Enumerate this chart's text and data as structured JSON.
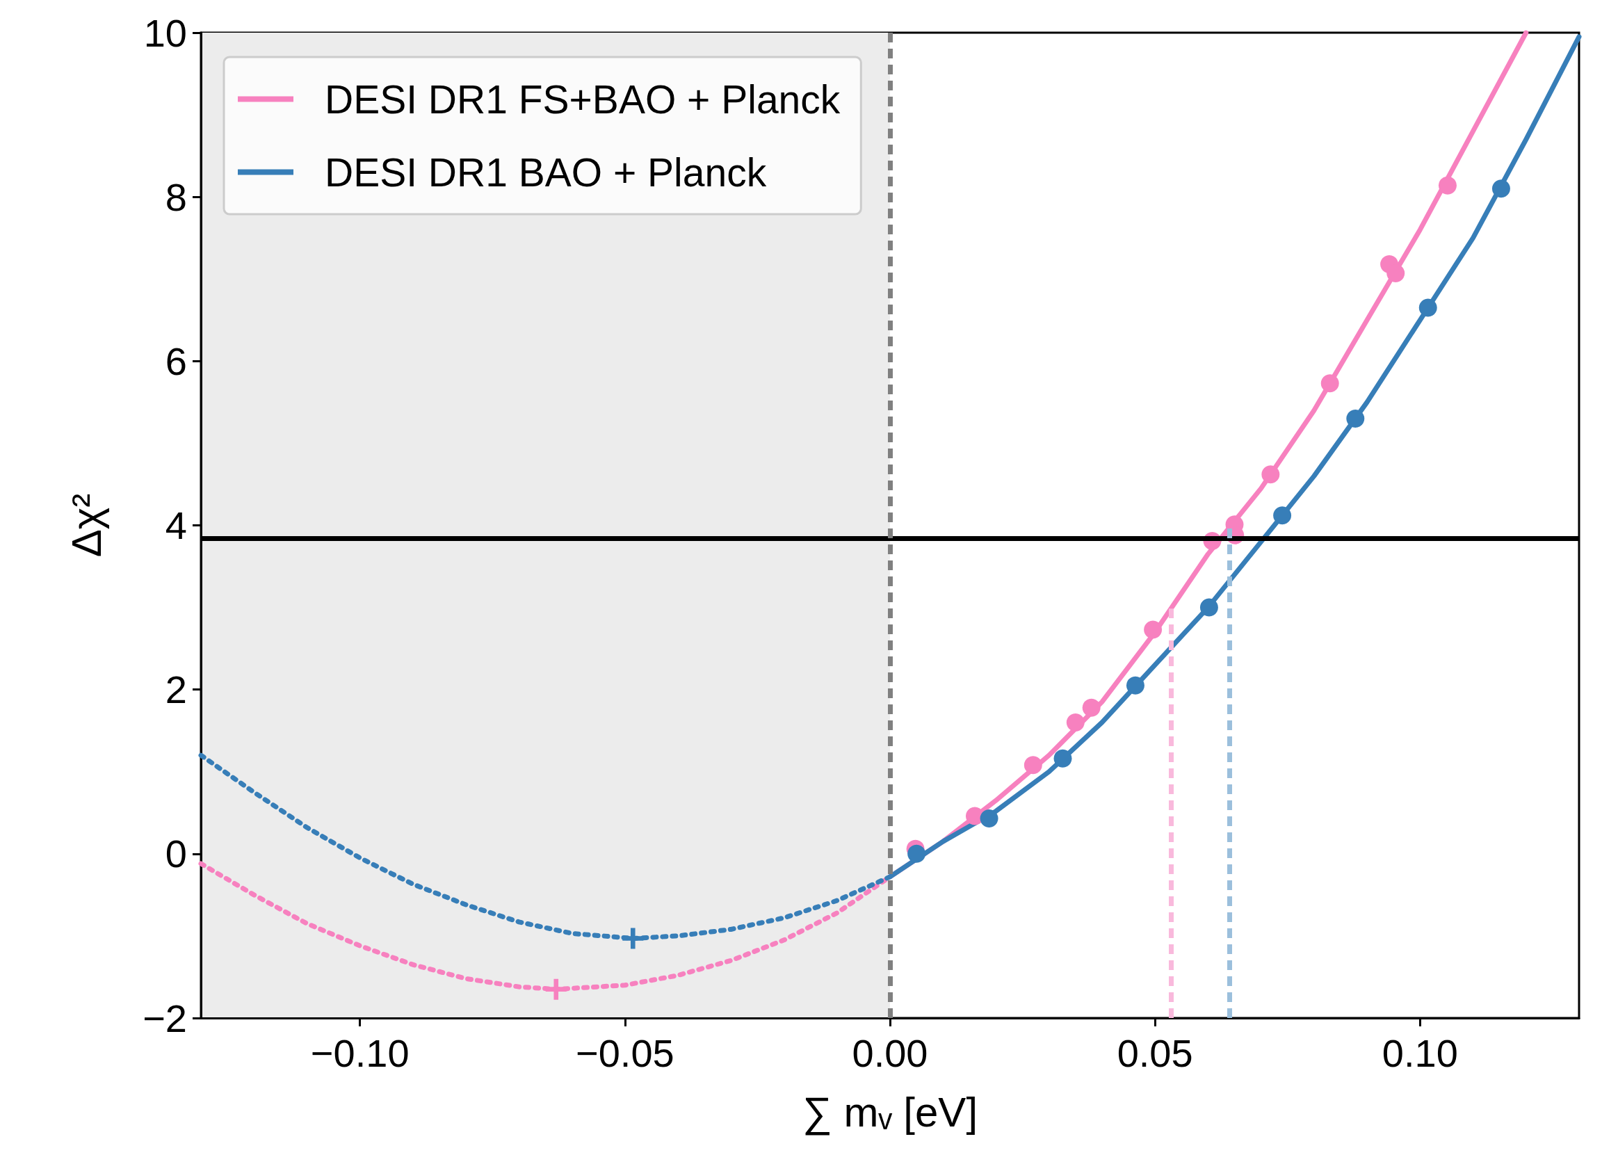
{
  "chart_data": {
    "type": "line",
    "xlabel": "∑ mᵥ [eV]",
    "ylabel": "Δχ²",
    "xlim": [
      -0.13,
      0.13
    ],
    "xticks": [
      {
        "value": -0.1,
        "label": "−0.10"
      },
      {
        "value": -0.05,
        "label": "−0.05"
      },
      {
        "value": 0,
        "label": "0.00"
      },
      {
        "value": 0.05,
        "label": "0.05"
      },
      {
        "value": 0.1,
        "label": "0.10"
      }
    ],
    "ylim": [
      -2,
      10
    ],
    "yticks": [
      {
        "value": -2,
        "label": "−2"
      },
      0,
      2,
      4,
      6,
      8,
      10
    ],
    "grid": false,
    "legend": "top left",
    "series": [
      {
        "name": "DESI DR1 FS+BAO + Planck",
        "color": "#f781bf",
        "line_style": "solid",
        "marker": "none",
        "x": [
          0,
          0.01,
          0.02,
          0.03,
          0.04,
          0.05,
          0.06,
          0.07,
          0.08,
          0.09,
          0.1,
          0.11,
          0.12
        ],
        "values": [
          -0.28,
          0.15,
          0.65,
          1.2,
          1.85,
          2.7,
          3.65,
          4.45,
          5.4,
          6.5,
          7.6,
          8.8,
          10
        ]
      },
      {
        "name": "DESI DR1 BAO + Planck",
        "color": "#377eb8",
        "line_style": "solid",
        "marker": "none",
        "x": [
          0,
          0.01,
          0.02,
          0.03,
          0.04,
          0.05,
          0.06,
          0.07,
          0.08,
          0.09,
          0.1,
          0.11,
          0.12,
          0.13
        ],
        "values": [
          -0.28,
          0.15,
          0.52,
          1.0,
          1.6,
          2.3,
          3.0,
          3.8,
          4.6,
          5.5,
          6.5,
          7.5,
          8.7,
          9.95
        ]
      },
      {
        "color": "#f781bf",
        "line_style": "dotted",
        "marker": "none",
        "x": [
          -0.13,
          -0.12,
          -0.11,
          -0.1,
          -0.09,
          -0.08,
          -0.07,
          -0.063,
          -0.05,
          -0.04,
          -0.03,
          -0.02,
          -0.01,
          0
        ],
        "values": [
          -0.12,
          -0.5,
          -0.85,
          -1.12,
          -1.35,
          -1.52,
          -1.62,
          -1.65,
          -1.6,
          -1.48,
          -1.3,
          -1.05,
          -0.72,
          -0.28
        ]
      },
      {
        "color": "#377eb8",
        "line_style": "dotted",
        "marker": "none",
        "x": [
          -0.13,
          -0.12,
          -0.11,
          -0.1,
          -0.09,
          -0.08,
          -0.07,
          -0.06,
          -0.0485,
          -0.04,
          -0.03,
          -0.02,
          -0.01,
          0
        ],
        "values": [
          1.2,
          0.75,
          0.32,
          -0.05,
          -0.37,
          -0.62,
          -0.83,
          -0.97,
          -1.03,
          -1.0,
          -0.92,
          -0.78,
          -0.57,
          -0.28
        ]
      },
      {
        "type": "scatter",
        "color": "#f781bf",
        "marker": "circle",
        "x": [
          0.0048,
          0.016,
          0.027,
          0.035,
          0.038,
          0.0496,
          0.0608,
          0.065,
          0.0651,
          0.0718,
          0.083,
          0.0942,
          0.0954,
          0.1052
        ],
        "values": [
          0.06,
          0.46,
          1.08,
          1.6,
          1.78,
          2.73,
          3.81,
          4.01,
          3.88,
          4.62,
          5.73,
          7.18,
          7.07,
          8.14
        ]
      },
      {
        "type": "scatter",
        "color": "#377eb8",
        "marker": "circle",
        "x": [
          0.005,
          0.0187,
          0.0326,
          0.0463,
          0.0602,
          0.074,
          0.0878,
          0.1015,
          0.1153
        ],
        "values": [
          0.0,
          0.43,
          1.16,
          2.05,
          3.0,
          4.12,
          5.3,
          6.65,
          8.1
        ]
      },
      {
        "type": "scatter",
        "color": "#f781bf",
        "marker": "cross",
        "x": [
          -0.063
        ],
        "values": [
          -1.65
        ]
      },
      {
        "type": "scatter",
        "color": "#377eb8",
        "marker": "cross",
        "x": [
          -0.0485
        ],
        "values": [
          -1.03
        ]
      }
    ],
    "ref_lines": [
      {
        "axis": "y",
        "value": 3.84,
        "color": "#000000",
        "line_style": "solid"
      },
      {
        "axis": "x",
        "value": 0,
        "color": "#808080",
        "line_style": "dashed"
      },
      {
        "axis": "x",
        "value": 0.053,
        "color": "#f9b9dc",
        "line_style": "dashed"
      },
      {
        "axis": "x",
        "value": 0.064,
        "color": "#9bbfdc",
        "line_style": "dashed"
      }
    ],
    "bands": [
      {
        "axis": "x",
        "from": -0.13,
        "to": 0,
        "color": "#ececec"
      }
    ]
  }
}
